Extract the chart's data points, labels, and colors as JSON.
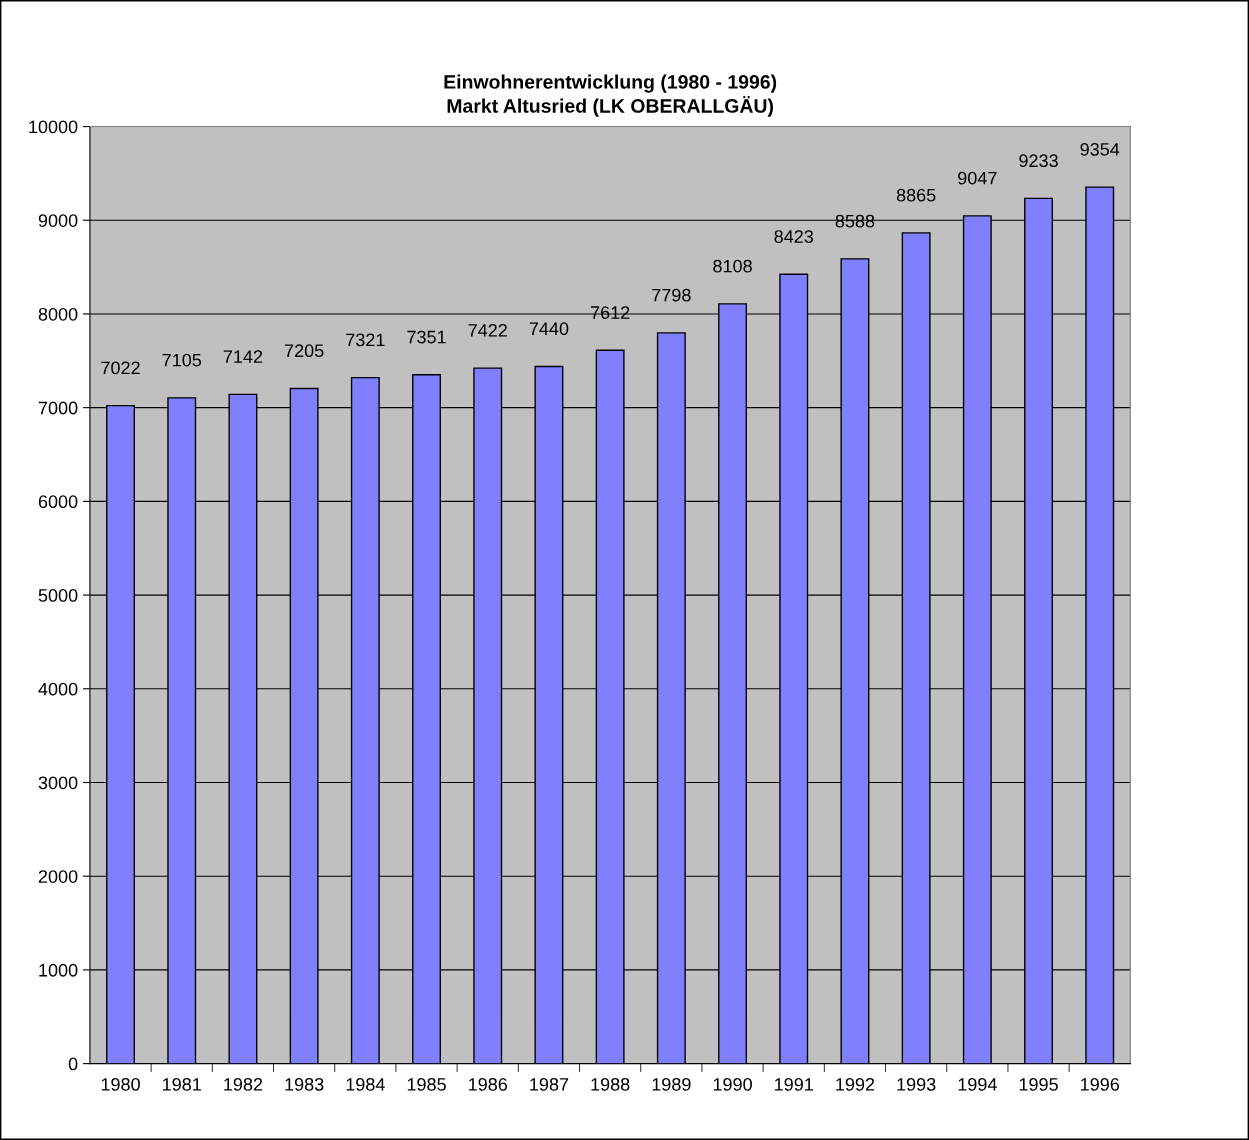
{
  "chart_data": {
    "type": "bar",
    "title": "Einwohnerentwicklung (1980 - 1996)\nMarkt Altusried (LK OBERALLGÄU)",
    "categories": [
      "1980",
      "1981",
      "1982",
      "1983",
      "1984",
      "1985",
      "1986",
      "1987",
      "1988",
      "1989",
      "1990",
      "1991",
      "1992",
      "1993",
      "1994",
      "1995",
      "1996"
    ],
    "values": [
      7022,
      7105,
      7142,
      7205,
      7321,
      7351,
      7422,
      7440,
      7612,
      7798,
      8108,
      8423,
      8588,
      8865,
      9047,
      9233,
      9354
    ],
    "color": "#8080ff",
    "ylim": [
      0,
      10000
    ],
    "yticks": [
      0,
      1000,
      2000,
      3000,
      4000,
      5000,
      6000,
      7000,
      8000,
      9000,
      10000
    ],
    "grid": "y",
    "data_labels": true
  }
}
